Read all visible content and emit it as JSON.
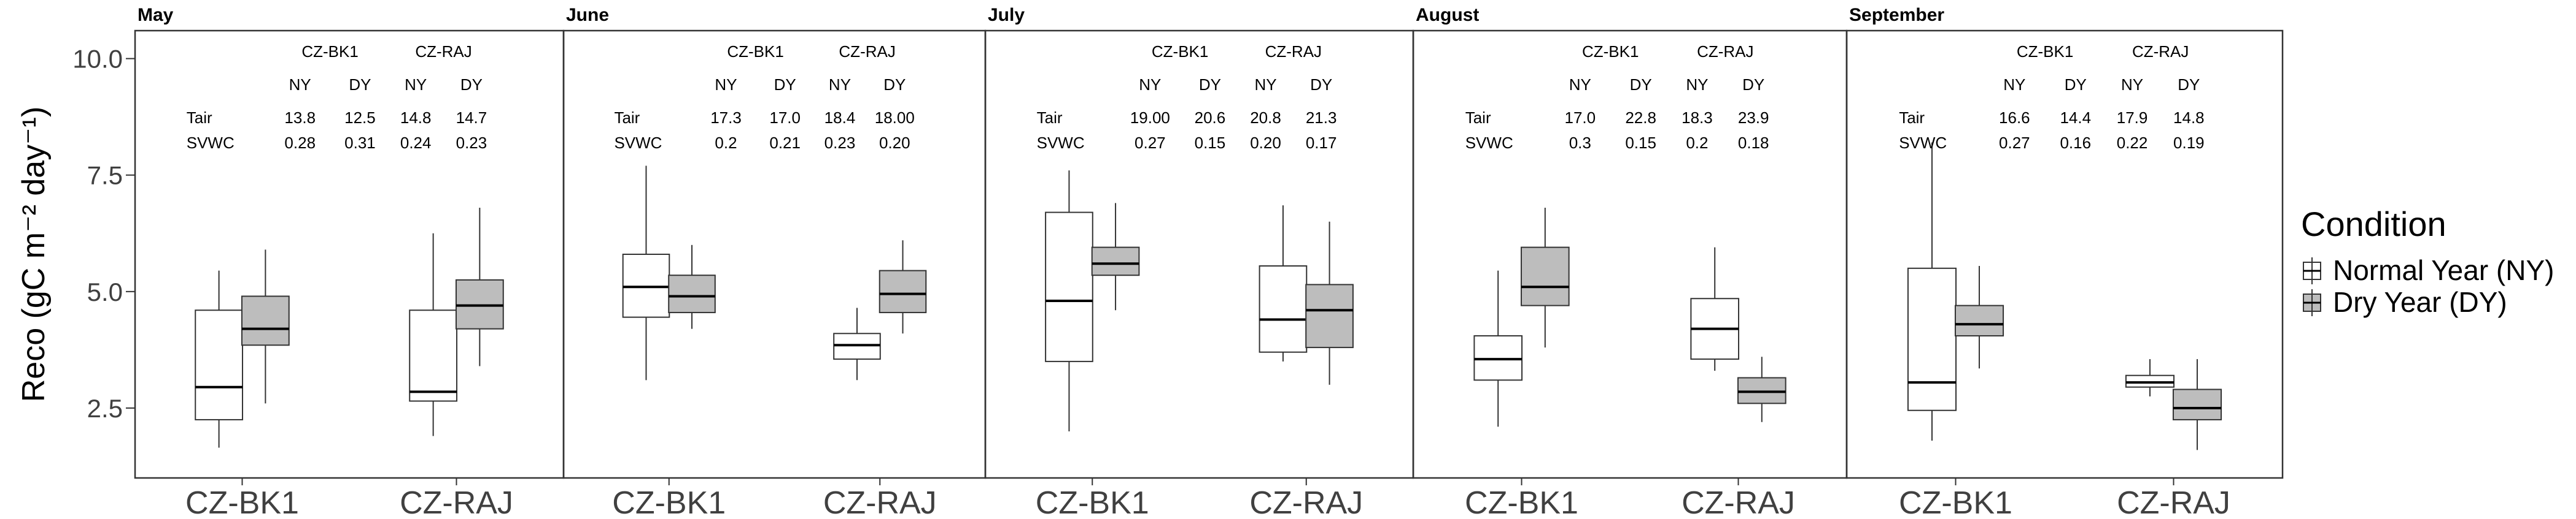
{
  "chart_data": {
    "type": "boxplot",
    "ylabel": "Reco (gC m⁻² day⁻¹)",
    "ylim": [
      1.0,
      10.6
    ],
    "yticks": [
      2.5,
      5.0,
      7.5,
      10.0
    ],
    "ytick_labels": [
      "2.5",
      "5.0",
      "7.5",
      "10.0"
    ],
    "categories": [
      "CZ-BK1",
      "CZ-RAJ"
    ],
    "legend": {
      "title": "Condition",
      "position": "right",
      "items": [
        {
          "label": "Normal Year (NY)",
          "color": "#ffffff"
        },
        {
          "label": "Dry Year (DY)",
          "color": "#bdbdbd"
        }
      ]
    },
    "table_headers": {
      "stations": [
        "CZ-BK1",
        "CZ-RAJ"
      ],
      "conditions": [
        "NY",
        "DY",
        "NY",
        "DY"
      ],
      "rows": [
        "Tair",
        "SVWC"
      ]
    },
    "panels": [
      {
        "title": "May",
        "table": {
          "Tair": [
            "13.8",
            "12.5",
            "14.8",
            "14.7"
          ],
          "SVWC": [
            "0.28",
            "0.31",
            "0.24",
            "0.23"
          ]
        },
        "boxes": [
          {
            "site": "CZ-BK1",
            "condition": "NY",
            "min": 1.65,
            "q1": 2.25,
            "median": 2.95,
            "q3": 4.6,
            "max": 5.45
          },
          {
            "site": "CZ-BK1",
            "condition": "DY",
            "min": 2.6,
            "q1": 3.85,
            "median": 4.2,
            "q3": 4.9,
            "max": 5.9
          },
          {
            "site": "CZ-RAJ",
            "condition": "NY",
            "min": 1.9,
            "q1": 2.65,
            "median": 2.85,
            "q3": 4.6,
            "max": 6.25
          },
          {
            "site": "CZ-RAJ",
            "condition": "DY",
            "min": 3.4,
            "q1": 4.2,
            "median": 4.7,
            "q3": 5.25,
            "max": 6.8
          }
        ]
      },
      {
        "title": "June",
        "table": {
          "Tair": [
            "17.3",
            "17.0",
            "18.4",
            "18.00"
          ],
          "SVWC": [
            "0.2",
            "0.21",
            "0.23",
            "0.20"
          ]
        },
        "boxes": [
          {
            "site": "CZ-BK1",
            "condition": "NY",
            "min": 3.1,
            "q1": 4.45,
            "median": 5.1,
            "q3": 5.8,
            "max": 7.7
          },
          {
            "site": "CZ-BK1",
            "condition": "DY",
            "min": 4.2,
            "q1": 4.55,
            "median": 4.9,
            "q3": 5.35,
            "max": 6.0
          },
          {
            "site": "CZ-RAJ",
            "condition": "NY",
            "min": 3.1,
            "q1": 3.55,
            "median": 3.85,
            "q3": 4.1,
            "max": 4.65
          },
          {
            "site": "CZ-RAJ",
            "condition": "DY",
            "min": 4.1,
            "q1": 4.55,
            "median": 4.95,
            "q3": 5.45,
            "max": 6.1
          }
        ]
      },
      {
        "title": "July",
        "table": {
          "Tair": [
            "19.00",
            "20.6",
            "20.8",
            "21.3"
          ],
          "SVWC": [
            "0.27",
            "0.15",
            "0.20",
            "0.17"
          ]
        },
        "boxes": [
          {
            "site": "CZ-BK1",
            "condition": "NY",
            "min": 2.0,
            "q1": 3.5,
            "median": 4.8,
            "q3": 6.7,
            "max": 7.6
          },
          {
            "site": "CZ-BK1",
            "condition": "DY",
            "min": 4.6,
            "q1": 5.35,
            "median": 5.6,
            "q3": 5.95,
            "max": 6.9
          },
          {
            "site": "CZ-RAJ",
            "condition": "NY",
            "min": 3.5,
            "q1": 3.7,
            "median": 4.4,
            "q3": 5.55,
            "max": 6.85
          },
          {
            "site": "CZ-RAJ",
            "condition": "DY",
            "min": 3.0,
            "q1": 3.8,
            "median": 4.6,
            "q3": 5.15,
            "max": 6.5
          }
        ]
      },
      {
        "title": "August",
        "table": {
          "Tair": [
            "17.0",
            "22.8",
            "18.3",
            "23.9"
          ],
          "SVWC": [
            "0.3",
            "0.15",
            "0.2",
            "0.18"
          ]
        },
        "boxes": [
          {
            "site": "CZ-BK1",
            "condition": "NY",
            "min": 2.1,
            "q1": 3.1,
            "median": 3.55,
            "q3": 4.05,
            "max": 5.45
          },
          {
            "site": "CZ-BK1",
            "condition": "DY",
            "min": 3.8,
            "q1": 4.7,
            "median": 5.1,
            "q3": 5.95,
            "max": 6.8
          },
          {
            "site": "CZ-RAJ",
            "condition": "NY",
            "min": 3.3,
            "q1": 3.55,
            "median": 4.2,
            "q3": 4.85,
            "max": 5.95
          },
          {
            "site": "CZ-RAJ",
            "condition": "DY",
            "min": 2.2,
            "q1": 2.6,
            "median": 2.85,
            "q3": 3.15,
            "max": 3.6
          }
        ]
      },
      {
        "title": "September",
        "table": {
          "Tair": [
            "16.6",
            "14.4",
            "17.9",
            "14.8"
          ],
          "SVWC": [
            "0.27",
            "0.16",
            "0.22",
            "0.19"
          ]
        },
        "boxes": [
          {
            "site": "CZ-BK1",
            "condition": "NY",
            "min": 1.8,
            "q1": 2.45,
            "median": 3.05,
            "q3": 5.5,
            "max": 8.2
          },
          {
            "site": "CZ-BK1",
            "condition": "DY",
            "min": 3.35,
            "q1": 4.05,
            "median": 4.3,
            "q3": 4.7,
            "max": 5.55
          },
          {
            "site": "CZ-RAJ",
            "condition": "NY",
            "min": 2.75,
            "q1": 2.95,
            "median": 3.05,
            "q3": 3.2,
            "max": 3.55
          },
          {
            "site": "CZ-RAJ",
            "condition": "DY",
            "min": 1.6,
            "q1": 2.25,
            "median": 2.5,
            "q3": 2.9,
            "max": 3.55
          }
        ]
      }
    ]
  }
}
